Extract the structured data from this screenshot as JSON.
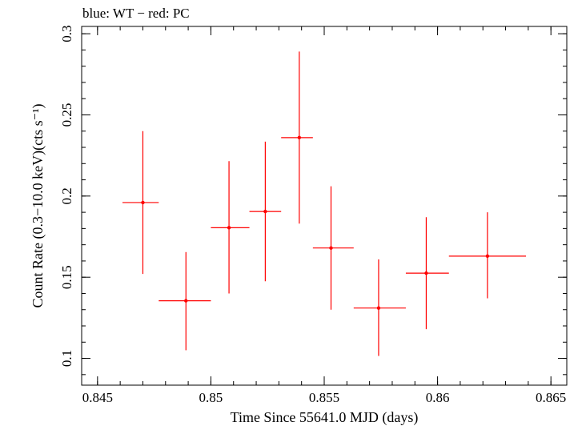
{
  "chart_data": {
    "type": "scatter",
    "title": "blue: WT − red: PC",
    "xlabel": "Time Since 55641.0 MJD (days)",
    "ylabel": "Count Rate (0.3−10.0 keV)(cts s⁻¹)",
    "xlim": [
      0.8443,
      0.8657
    ],
    "ylim": [
      0.0835,
      0.3045
    ],
    "x_ticks": [
      0.845,
      0.85,
      0.855,
      0.86,
      0.865
    ],
    "x_tick_labels": [
      "0.845",
      "0.85",
      "0.855",
      "0.86",
      "0.865"
    ],
    "y_ticks": [
      0.1,
      0.15,
      0.2,
      0.25,
      0.3
    ],
    "y_tick_labels": [
      "0.1",
      "0.15",
      "0.2",
      "0.25",
      "0.3"
    ],
    "x_minor_step": 0.001,
    "y_minor_step": 0.01,
    "grid": false,
    "series": [
      {
        "color": "#ff0000",
        "points": [
          {
            "x": 0.847,
            "y": 0.196,
            "x_lo": 0.8461,
            "x_hi": 0.8477,
            "y_lo": 0.152,
            "y_hi": 0.24
          },
          {
            "x": 0.8489,
            "y": 0.1355,
            "x_lo": 0.8477,
            "x_hi": 0.85,
            "y_lo": 0.105,
            "y_hi": 0.1655
          },
          {
            "x": 0.8508,
            "y": 0.1805,
            "x_lo": 0.85,
            "x_hi": 0.8517,
            "y_lo": 0.14,
            "y_hi": 0.2215
          },
          {
            "x": 0.8524,
            "y": 0.1905,
            "x_lo": 0.8517,
            "x_hi": 0.8531,
            "y_lo": 0.1475,
            "y_hi": 0.2335
          },
          {
            "x": 0.8539,
            "y": 0.236,
            "x_lo": 0.8531,
            "x_hi": 0.8545,
            "y_lo": 0.183,
            "y_hi": 0.289
          },
          {
            "x": 0.8553,
            "y": 0.168,
            "x_lo": 0.8545,
            "x_hi": 0.8563,
            "y_lo": 0.13,
            "y_hi": 0.206
          },
          {
            "x": 0.8574,
            "y": 0.131,
            "x_lo": 0.8563,
            "x_hi": 0.8586,
            "y_lo": 0.1015,
            "y_hi": 0.161
          },
          {
            "x": 0.8595,
            "y": 0.1525,
            "x_lo": 0.8586,
            "x_hi": 0.8605,
            "y_lo": 0.118,
            "y_hi": 0.187
          },
          {
            "x": 0.8622,
            "y": 0.163,
            "x_lo": 0.8605,
            "x_hi": 0.8639,
            "y_lo": 0.137,
            "y_hi": 0.19
          }
        ]
      }
    ]
  }
}
